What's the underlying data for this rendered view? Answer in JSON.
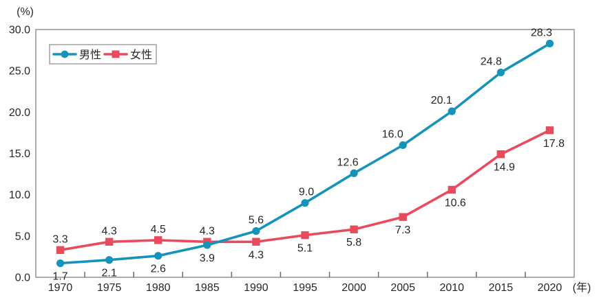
{
  "chart_data": {
    "type": "line",
    "title": "",
    "y_axis_unit_label": "(%)",
    "x_axis_unit_label": "(年)",
    "categories": [
      "1970",
      "1975",
      "1980",
      "1985",
      "1990",
      "1995",
      "2000",
      "2005",
      "2010",
      "2015",
      "2020"
    ],
    "series": [
      {
        "name": "男性",
        "role": "male",
        "color": "#1593b8",
        "marker": "circle",
        "values": [
          1.7,
          2.1,
          2.6,
          3.9,
          5.6,
          9.0,
          12.6,
          16.0,
          20.1,
          24.8,
          28.3
        ],
        "label_sides": [
          "below",
          "below",
          "below",
          "below",
          "above",
          "above",
          "above",
          "above",
          "above",
          "above",
          "above"
        ]
      },
      {
        "name": "女性",
        "role": "female",
        "color": "#e84b5e",
        "marker": "square",
        "values": [
          3.3,
          4.3,
          4.5,
          4.3,
          4.3,
          5.1,
          5.8,
          7.3,
          10.6,
          14.9,
          17.8
        ],
        "label_sides": [
          "above",
          "above",
          "above",
          "above",
          "below",
          "below",
          "below",
          "below",
          "below",
          "below",
          "below"
        ]
      }
    ],
    "ylim": [
      0,
      30
    ],
    "ytick_interval": 5,
    "ytick_labels": [
      "0.0",
      "5.0",
      "10.0",
      "15.0",
      "20.0",
      "25.0",
      "30.0"
    ],
    "grid": false,
    "legend_position": "top-left-inside",
    "colors": {
      "frame": "#9a9a9a",
      "tick": "#6a6a6a",
      "text": "#262626",
      "background": "#ffffff"
    }
  }
}
